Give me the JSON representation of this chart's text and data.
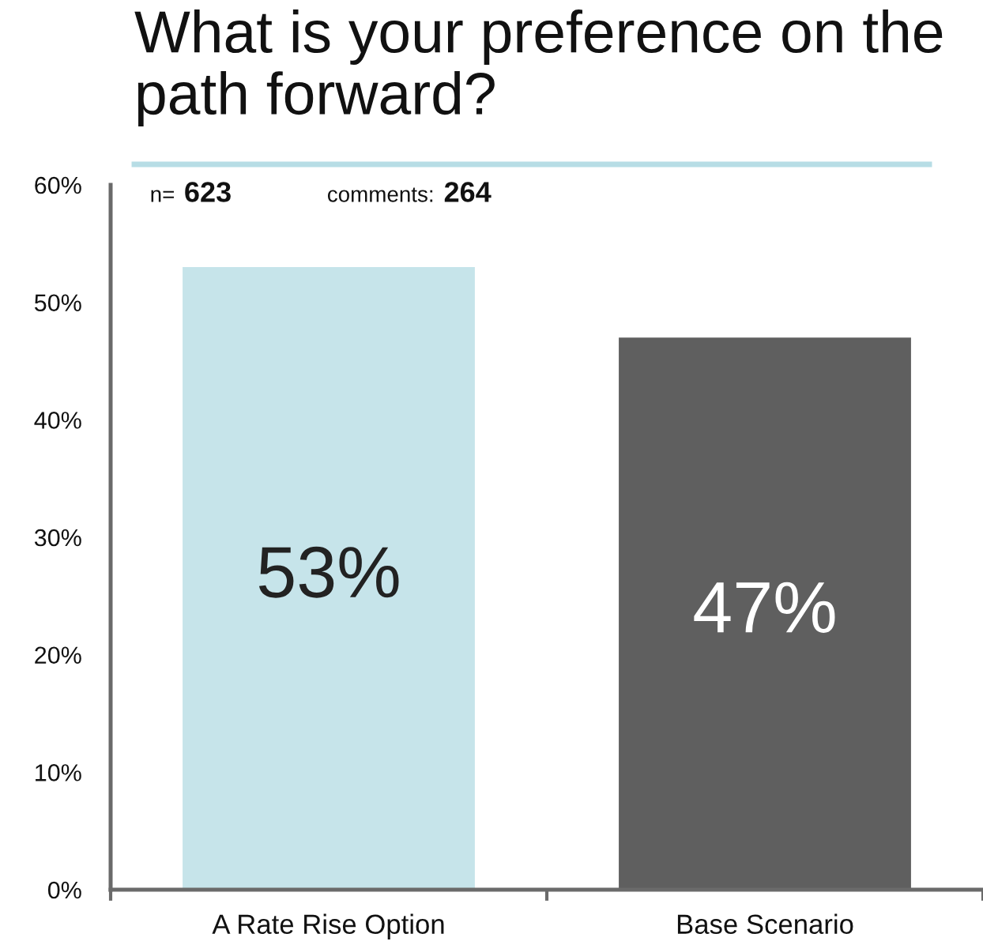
{
  "chart_data": {
    "type": "bar",
    "title": "What is your preference on the path forward?",
    "categories": [
      "A Rate Rise Option",
      "Base Scenario"
    ],
    "values": [
      53,
      47
    ],
    "colors": [
      "#c6e4ea",
      "#5f5f5f"
    ],
    "value_labels": [
      "53%",
      "47%"
    ],
    "ylim": [
      0,
      60
    ],
    "yticks": [
      {
        "value": 0,
        "label": "0%"
      },
      {
        "value": 10,
        "label": "10%"
      },
      {
        "value": 20,
        "label": "20%"
      },
      {
        "value": 30,
        "label": "30%"
      },
      {
        "value": 40,
        "label": "40%"
      },
      {
        "value": 50,
        "label": "50%"
      },
      {
        "value": 60,
        "label": "60%"
      }
    ],
    "annotations": [
      "n= 623",
      "comments: 264"
    ]
  }
}
